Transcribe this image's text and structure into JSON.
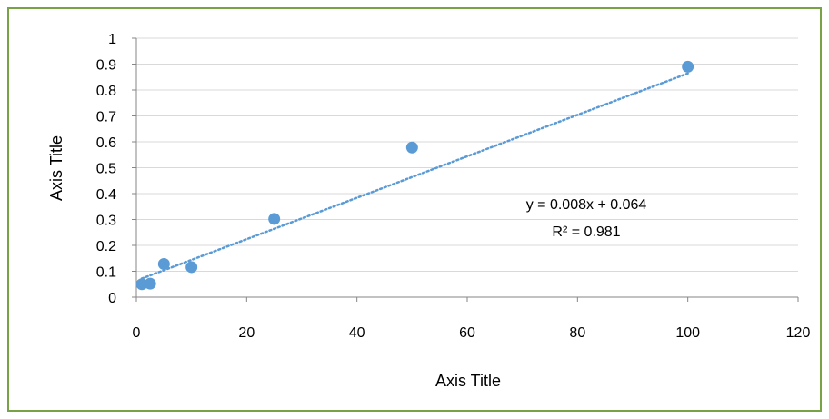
{
  "colors": {
    "frame_border": "#77a346",
    "point": "#5b9bd5",
    "trendline": "#5b9bd5",
    "gridline": "#d9d9d9",
    "axis": "#868686"
  },
  "chart_data": {
    "type": "scatter",
    "xlabel": "Axis Title",
    "ylabel": "Axis Title",
    "xlim": [
      0,
      120
    ],
    "ylim": [
      0,
      1
    ],
    "xticks": [
      "0",
      "20",
      "40",
      "60",
      "80",
      "100",
      "120"
    ],
    "yticks": [
      "0",
      "0.1",
      "0.2",
      "0.3",
      "0.4",
      "0.5",
      "0.6",
      "0.7",
      "0.8",
      "0.9",
      "1"
    ],
    "grid": "horizontal",
    "legend": "none",
    "series": [
      {
        "points": [
          {
            "x": 1,
            "y": 0.05
          },
          {
            "x": 2.5,
            "y": 0.052
          },
          {
            "x": 5,
            "y": 0.128
          },
          {
            "x": 10,
            "y": 0.116
          },
          {
            "x": 25,
            "y": 0.302
          },
          {
            "x": 50,
            "y": 0.578
          },
          {
            "x": 100,
            "y": 0.89
          }
        ]
      }
    ],
    "trendline": {
      "type": "linear",
      "slope": 0.008,
      "intercept": 0.064,
      "x_range": [
        1,
        100
      ],
      "equation": "y = 0.008x + 0.064",
      "r_squared": "R² = 0.981"
    }
  }
}
